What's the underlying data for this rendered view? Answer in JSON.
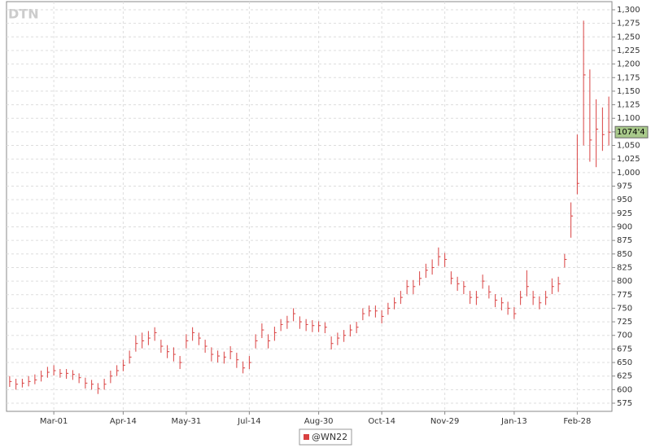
{
  "chart_data": {
    "type": "ohlc",
    "watermark": "DTN",
    "categories": [
      null,
      null,
      null,
      null,
      null,
      null,
      null,
      "Mar-01",
      null,
      null,
      null,
      null,
      null,
      null,
      null,
      null,
      null,
      null,
      "Apr-14",
      null,
      null,
      null,
      null,
      null,
      null,
      null,
      null,
      null,
      "May-31",
      null,
      null,
      null,
      null,
      null,
      null,
      null,
      null,
      null,
      "Jul-14",
      null,
      null,
      null,
      null,
      null,
      null,
      null,
      null,
      null,
      null,
      "Aug-30",
      null,
      null,
      null,
      null,
      null,
      null,
      null,
      null,
      null,
      "Oct-14",
      null,
      null,
      null,
      null,
      null,
      null,
      null,
      null,
      null,
      "Nov-29",
      null,
      null,
      null,
      null,
      null,
      null,
      null,
      null,
      null,
      null,
      "Jan-13",
      null,
      null,
      null,
      null,
      null,
      null,
      null,
      null,
      null,
      "Feb-28",
      null,
      null,
      null,
      null,
      null
    ],
    "series": [
      {
        "name": "@WN22",
        "color": "#d94040",
        "high": [
          625,
          620,
          620,
          625,
          628,
          635,
          642,
          645,
          638,
          638,
          636,
          630,
          622,
          618,
          612,
          620,
          635,
          645,
          655,
          672,
          700,
          705,
          708,
          715,
          692,
          682,
          678,
          662,
          702,
          715,
          705,
          692,
          678,
          672,
          670,
          680,
          668,
          652,
          662,
          702,
          722,
          702,
          716,
          730,
          736,
          750,
          735,
          730,
          728,
          726,
          724,
          698,
          705,
          710,
          720,
          725,
          750,
          755,
          755,
          746,
          760,
          770,
          782,
          802,
          802,
          818,
          832,
          840,
          862,
          852,
          818,
          808,
          800,
          782,
          782,
          812,
          792,
          776,
          770,
          762,
          752,
          782,
          820,
          782,
          772,
          782,
          805,
          808,
          850,
          945,
          1070,
          1280,
          1190,
          1135,
          1120,
          1140
        ],
        "low": [
          605,
          600,
          604,
          606,
          610,
          615,
          622,
          626,
          622,
          620,
          618,
          612,
          602,
          600,
          592,
          600,
          612,
          625,
          634,
          648,
          670,
          676,
          682,
          690,
          668,
          658,
          652,
          638,
          676,
          690,
          682,
          668,
          652,
          650,
          648,
          656,
          640,
          630,
          638,
          676,
          695,
          676,
          690,
          708,
          712,
          726,
          712,
          708,
          706,
          706,
          704,
          674,
          682,
          688,
          698,
          704,
          728,
          735,
          733,
          722,
          738,
          748,
          758,
          776,
          776,
          792,
          806,
          812,
          828,
          826,
          794,
          782,
          776,
          758,
          756,
          786,
          768,
          752,
          746,
          738,
          730,
          756,
          772,
          756,
          748,
          756,
          776,
          780,
          825,
          880,
          960,
          1050,
          1020,
          1010,
          1040,
          1050
        ],
        "close": [
          615,
          610,
          612,
          615,
          618,
          625,
          632,
          635,
          630,
          630,
          628,
          622,
          612,
          610,
          602,
          610,
          625,
          635,
          645,
          660,
          685,
          690,
          695,
          705,
          680,
          670,
          665,
          650,
          690,
          705,
          695,
          680,
          665,
          662,
          660,
          670,
          655,
          640,
          650,
          690,
          710,
          690,
          705,
          720,
          725,
          740,
          725,
          720,
          718,
          718,
          715,
          685,
          695,
          700,
          710,
          715,
          740,
          745,
          745,
          735,
          750,
          760,
          770,
          790,
          790,
          805,
          820,
          825,
          845,
          840,
          805,
          795,
          790,
          770,
          770,
          800,
          780,
          765,
          760,
          750,
          740,
          770,
          790,
          770,
          760,
          770,
          790,
          795,
          840,
          920,
          980,
          1180,
          1060,
          1080,
          1070,
          1074.5
        ]
      }
    ],
    "last": {
      "value": 1074.5,
      "label": "1074'4"
    },
    "ylim": [
      560,
      1315
    ],
    "yticks": [
      575,
      600,
      625,
      650,
      675,
      700,
      725,
      750,
      775,
      800,
      825,
      850,
      875,
      900,
      925,
      950,
      975,
      {
        "value": 1000,
        "label": "1,000"
      },
      {
        "value": 1025,
        "label": "1,025"
      },
      {
        "value": 1050,
        "label": "1,050"
      },
      {
        "value": 1075,
        "label": "1,075"
      },
      {
        "value": 1100,
        "label": "1,100"
      },
      {
        "value": 1125,
        "label": "1,125"
      },
      {
        "value": 1150,
        "label": "1,150"
      },
      {
        "value": 1175,
        "label": "1,175"
      },
      {
        "value": 1200,
        "label": "1,200"
      },
      {
        "value": 1225,
        "label": "1,225"
      },
      {
        "value": 1250,
        "label": "1,250"
      },
      {
        "value": 1275,
        "label": "1,275"
      },
      {
        "value": 1300,
        "label": "1,300"
      }
    ],
    "grid": true,
    "legend": "bottom"
  }
}
